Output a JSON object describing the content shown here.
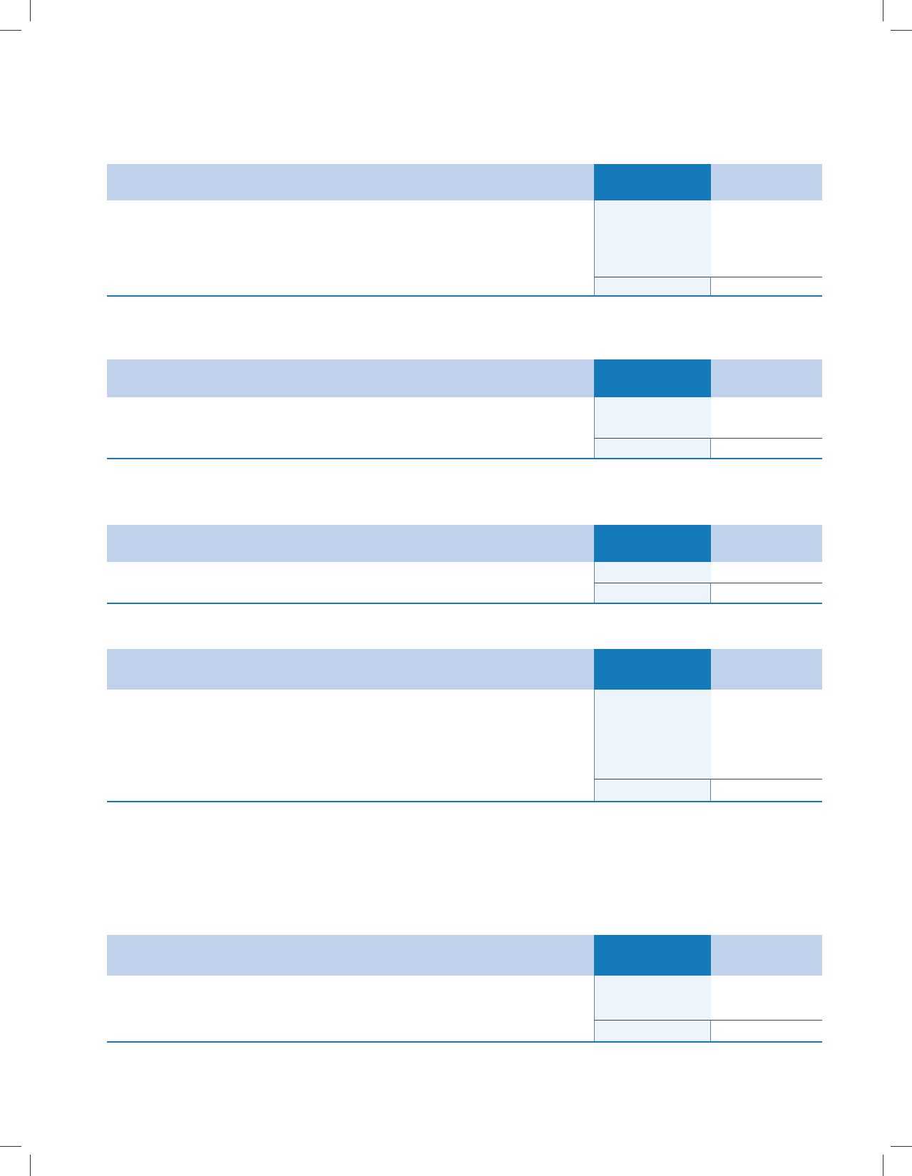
{
  "page": {
    "tables": [
      {
        "id": "table-1",
        "header": {
          "description": "",
          "current": "",
          "prior": ""
        },
        "rows": [],
        "total": {
          "description": "",
          "current": "",
          "prior": ""
        }
      },
      {
        "id": "table-2",
        "header": {
          "description": "",
          "current": "",
          "prior": ""
        },
        "rows": [],
        "total": {
          "description": "",
          "current": "",
          "prior": ""
        }
      },
      {
        "id": "table-3",
        "header": {
          "description": "",
          "current": "",
          "prior": ""
        },
        "rows": [],
        "total": {
          "description": "",
          "current": "",
          "prior": ""
        }
      },
      {
        "id": "table-4",
        "header": {
          "description": "",
          "current": "",
          "prior": ""
        },
        "rows": [],
        "total": {
          "description": "",
          "current": "",
          "prior": ""
        }
      },
      {
        "id": "table-5",
        "header": {
          "description": "",
          "current": "",
          "prior": ""
        },
        "rows": [],
        "total": {
          "description": "",
          "current": "",
          "prior": ""
        }
      }
    ]
  },
  "colors": {
    "header_light": "#c0d1ec",
    "header_accent": "#1479b8",
    "current_column_fill": "#edf4fb",
    "rule": "#1479b8"
  }
}
